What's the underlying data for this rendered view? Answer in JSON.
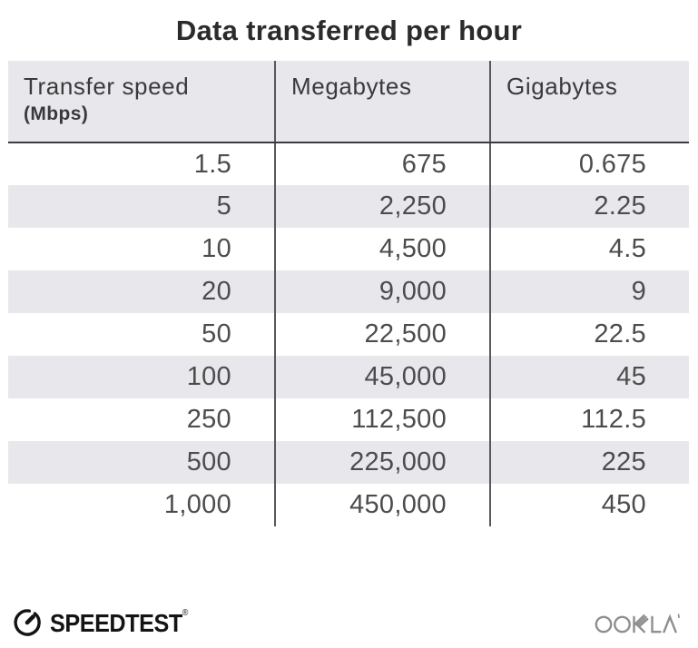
{
  "title": "Data transferred per hour",
  "table": {
    "columns": [
      {
        "label": "Transfer speed",
        "sublabel": "(Mbps)"
      },
      {
        "label": "Megabytes",
        "sublabel": ""
      },
      {
        "label": "Gigabytes",
        "sublabel": ""
      }
    ],
    "rows": [
      [
        "1.5",
        "675",
        "0.675"
      ],
      [
        "5",
        "2,250",
        "2.25"
      ],
      [
        "10",
        "4,500",
        "4.5"
      ],
      [
        "20",
        "9,000",
        "9"
      ],
      [
        "50",
        "22,500",
        "22.5"
      ],
      [
        "100",
        "45,000",
        "45"
      ],
      [
        "250",
        "112,500",
        "112.5"
      ],
      [
        "500",
        "225,000",
        "225"
      ],
      [
        "1,000",
        "450,000",
        "450"
      ]
    ]
  },
  "footer": {
    "speedtest_label": "SPEEDTEST",
    "speedtest_trademark": "®",
    "ookla_label": "OOKLA"
  },
  "colors": {
    "header_bg": "#e8e8ec",
    "alt_row_bg": "#e8e8ec",
    "divider": "#58585c",
    "header_underline": "#3c3c3e",
    "title_text": "#2b2b2d",
    "header_text": "#3a3a3c",
    "data_text": "#4c4c4e",
    "speedtest_logo": "#141414",
    "ookla_logo": "#8e8d90"
  },
  "chart_data": {
    "type": "table",
    "title": "Data transferred per hour",
    "columns": [
      "Transfer speed (Mbps)",
      "Megabytes",
      "Gigabytes"
    ],
    "rows": [
      [
        1.5,
        675,
        0.675
      ],
      [
        5,
        2250,
        2.25
      ],
      [
        10,
        4500,
        4.5
      ],
      [
        20,
        9000,
        9
      ],
      [
        50,
        22500,
        22.5
      ],
      [
        100,
        45000,
        45
      ],
      [
        250,
        112500,
        112.5
      ],
      [
        500,
        225000,
        225
      ],
      [
        1000,
        450000,
        450
      ]
    ]
  }
}
